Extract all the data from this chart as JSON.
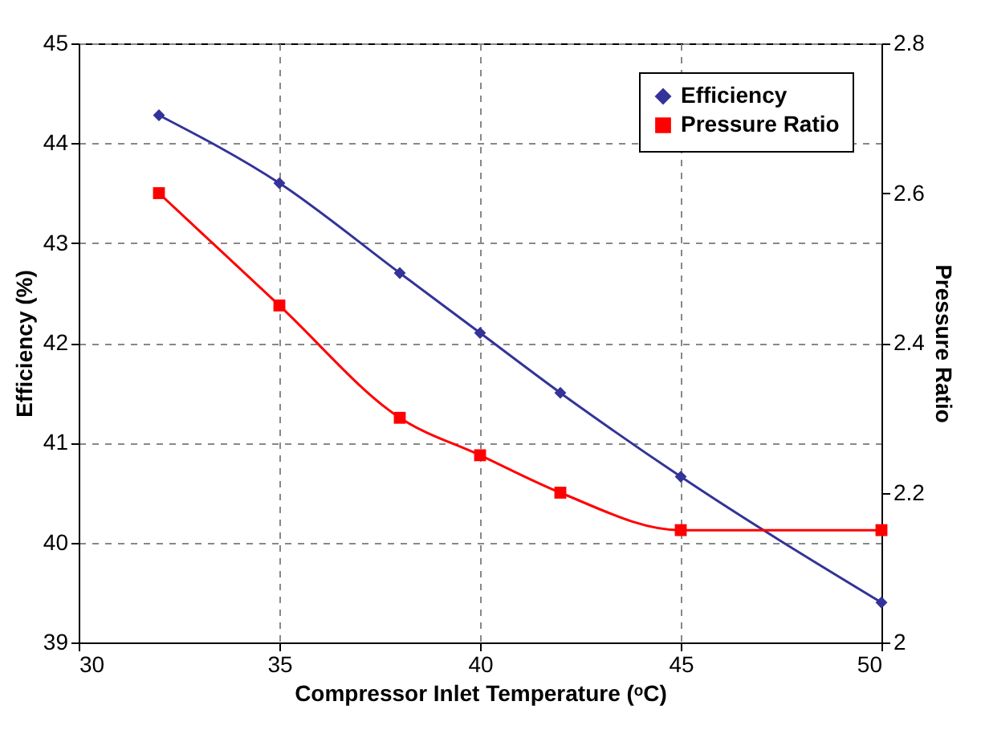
{
  "chart_data": {
    "type": "line",
    "xlabel": "Compressor Inlet Temperature (ᵒC)",
    "ylabel": "Efficiency (%)",
    "y2label": "Pressure Ratio",
    "x": [
      32,
      35,
      38,
      40,
      42,
      45,
      50
    ],
    "series": [
      {
        "name": "Efficiency",
        "color": "#333399",
        "marker": "diamond",
        "values": [
          44.28,
          43.6,
          42.7,
          42.1,
          41.5,
          40.66,
          39.4
        ]
      },
      {
        "name": "Pressure Ratio",
        "color": "#ff0000",
        "marker": "square",
        "axis": "y2",
        "values": [
          2.6,
          2.45,
          2.3,
          2.25,
          2.2,
          2.15,
          2.15
        ]
      }
    ],
    "xlim": [
      30,
      50
    ],
    "xticks": [
      30,
      35,
      40,
      45,
      50
    ],
    "ylim": [
      39,
      45
    ],
    "yticks": [
      39,
      40,
      41,
      42,
      43,
      44,
      45
    ],
    "y2lim": [
      2,
      2.8
    ],
    "y2ticks": [
      2,
      2.2,
      2.4,
      2.6,
      2.8
    ],
    "grid": true,
    "legend": "top right"
  }
}
